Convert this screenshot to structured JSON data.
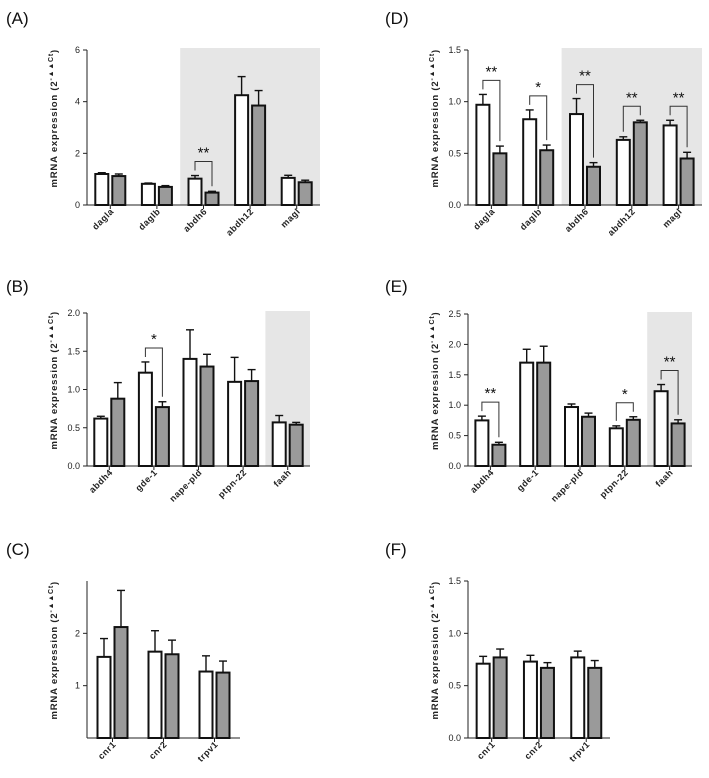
{
  "colors": {
    "control_fill": "#ffffff",
    "treated_fill": "#9a9a9a",
    "bar_stroke": "#111111",
    "shade": "#e6e6e6"
  },
  "y_label_main": "mRNA expression (2",
  "y_label_sup": "-▲▲Ct",
  "chart_data": [
    {
      "panel": "(A)",
      "type": "bar",
      "categories": [
        "dagla",
        "daglb",
        "abdh6",
        "abdh12",
        "magl"
      ],
      "series": [
        {
          "values": [
            1.2,
            0.82,
            1.02,
            4.25,
            1.05
          ],
          "errors": [
            0.05,
            0.03,
            0.12,
            0.72,
            0.1
          ]
        },
        {
          "values": [
            1.12,
            0.7,
            0.48,
            3.85,
            0.88
          ],
          "errors": [
            0.08,
            0.05,
            0.05,
            0.58,
            0.08
          ]
        }
      ],
      "ylim": [
        0,
        6
      ],
      "yticks": [
        "0",
        "2",
        "4",
        "6"
      ],
      "shaded_categories": [
        2,
        3,
        4
      ],
      "significance": [
        {
          "category": 2,
          "label": "**"
        }
      ]
    },
    {
      "panel": "(B)",
      "type": "bar",
      "categories": [
        "abdh4",
        "gde-1",
        "nape-pld",
        "ptpn-22",
        "faah"
      ],
      "series": [
        {
          "values": [
            0.62,
            1.22,
            1.4,
            1.1,
            0.57
          ],
          "errors": [
            0.03,
            0.14,
            0.38,
            0.32,
            0.09
          ]
        },
        {
          "values": [
            0.88,
            0.77,
            1.3,
            1.11,
            0.54
          ],
          "errors": [
            0.21,
            0.07,
            0.16,
            0.15,
            0.03
          ]
        }
      ],
      "ylim": [
        0,
        2
      ],
      "yticks": [
        "0.0",
        "0.5",
        "1.0",
        "1.5",
        "2.0"
      ],
      "shaded_categories": [
        4
      ],
      "significance": [
        {
          "category": 1,
          "label": "*"
        }
      ]
    },
    {
      "panel": "(C)",
      "type": "bar",
      "categories": [
        "cnr1",
        "cnr2",
        "trpv1"
      ],
      "series": [
        {
          "values": [
            1.55,
            1.65,
            1.27
          ],
          "errors": [
            0.35,
            0.4,
            0.3
          ]
        },
        {
          "values": [
            2.12,
            1.6,
            1.25
          ],
          "errors": [
            0.7,
            0.27,
            0.22
          ]
        }
      ],
      "ylim": [
        0,
        3
      ],
      "yticks": [
        "1",
        "2"
      ],
      "shaded_categories": [],
      "significance": []
    },
    {
      "panel": "(D)",
      "type": "bar",
      "categories": [
        "dagla",
        "daglb",
        "abdh6",
        "abdh12",
        "magl"
      ],
      "series": [
        {
          "values": [
            0.97,
            0.83,
            0.88,
            0.63,
            0.77
          ],
          "errors": [
            0.1,
            0.09,
            0.15,
            0.03,
            0.05
          ]
        },
        {
          "values": [
            0.5,
            0.53,
            0.37,
            0.8,
            0.45
          ],
          "errors": [
            0.07,
            0.05,
            0.04,
            0.02,
            0.06
          ]
        }
      ],
      "ylim": [
        0,
        1.5
      ],
      "yticks": [
        "0.0",
        "0.5",
        "1.0",
        "1.5"
      ],
      "shaded_categories": [
        2,
        3,
        4
      ],
      "significance": [
        {
          "category": 0,
          "label": "**"
        },
        {
          "category": 1,
          "label": "*"
        },
        {
          "category": 2,
          "label": "**"
        },
        {
          "category": 3,
          "label": "**"
        },
        {
          "category": 4,
          "label": "**"
        }
      ]
    },
    {
      "panel": "(E)",
      "type": "bar",
      "categories": [
        "abdh4",
        "gde-1",
        "nape-pld",
        "ptpn-22",
        "faah"
      ],
      "series": [
        {
          "values": [
            0.75,
            1.7,
            0.97,
            0.62,
            1.23
          ],
          "errors": [
            0.07,
            0.22,
            0.05,
            0.04,
            0.11
          ]
        },
        {
          "values": [
            0.35,
            1.7,
            0.81,
            0.76,
            0.7
          ],
          "errors": [
            0.04,
            0.27,
            0.06,
            0.05,
            0.06
          ]
        }
      ],
      "ylim": [
        0,
        2.5
      ],
      "yticks": [
        "0.0",
        "0.5",
        "1.0",
        "1.5",
        "2.0",
        "2.5"
      ],
      "shaded_categories": [
        4
      ],
      "significance": [
        {
          "category": 0,
          "label": "**"
        },
        {
          "category": 3,
          "label": "*"
        },
        {
          "category": 4,
          "label": "**"
        }
      ]
    },
    {
      "panel": "(F)",
      "type": "bar",
      "categories": [
        "cnr1",
        "cnr2",
        "trpv1"
      ],
      "series": [
        {
          "values": [
            0.71,
            0.73,
            0.77
          ],
          "errors": [
            0.07,
            0.06,
            0.06
          ]
        },
        {
          "values": [
            0.77,
            0.67,
            0.67
          ],
          "errors": [
            0.08,
            0.05,
            0.07
          ]
        }
      ],
      "ylim": [
        0,
        1.5
      ],
      "yticks": [
        "0.0",
        "0.5",
        "1.0",
        "1.5"
      ],
      "shaded_categories": [],
      "significance": []
    }
  ]
}
